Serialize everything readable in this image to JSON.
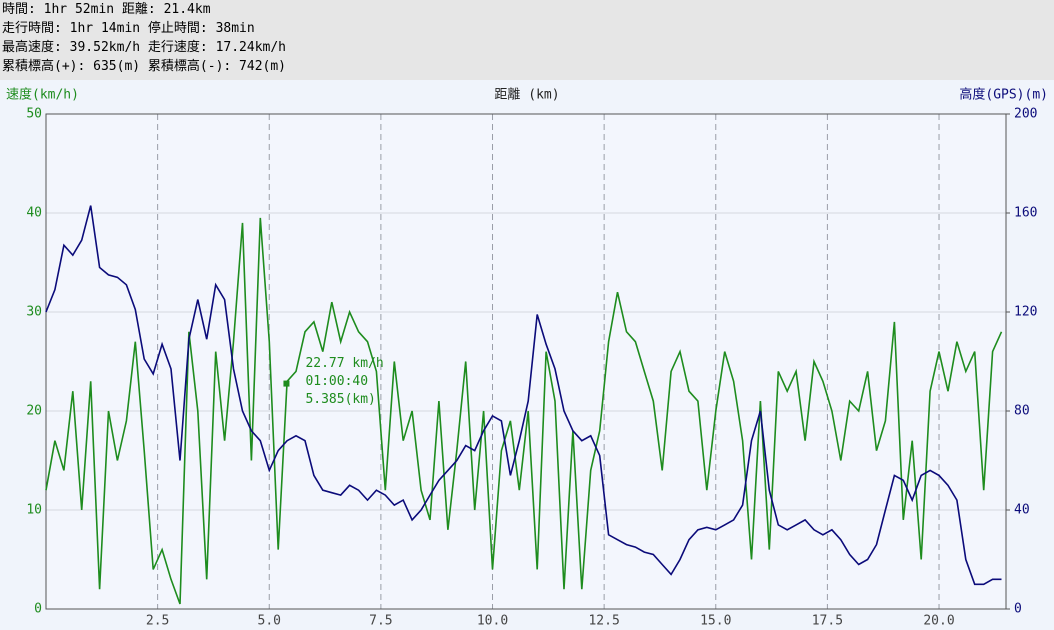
{
  "header": {
    "lines": [
      "時間: 1hr 52min 距離: 21.4km",
      "走行時間: 1hr 14min 停止時間: 38min",
      "最高速度: 39.52km/h 走行速度: 17.24km/h",
      "累積標高(+): 635(m) 累積標高(-): 742(m)"
    ]
  },
  "chart_data": {
    "type": "line",
    "y_label": "速度(km/h)",
    "x_label": "距離 (km)",
    "y2_label": "高度(GPS)(m)",
    "x": [
      0,
      0.2,
      0.4,
      0.6,
      0.8,
      1.0,
      1.2,
      1.4,
      1.6,
      1.8,
      2.0,
      2.2,
      2.4,
      2.6,
      2.8,
      3.0,
      3.2,
      3.4,
      3.6,
      3.8,
      4.0,
      4.2,
      4.4,
      4.6,
      4.8,
      5.0,
      5.2,
      5.4,
      5.6,
      5.8,
      6.0,
      6.2,
      6.4,
      6.6,
      6.8,
      7.0,
      7.2,
      7.4,
      7.6,
      7.8,
      8.0,
      8.2,
      8.4,
      8.6,
      8.8,
      9.0,
      9.2,
      9.4,
      9.6,
      9.8,
      10.0,
      10.2,
      10.4,
      10.6,
      10.8,
      11.0,
      11.2,
      11.4,
      11.6,
      11.8,
      12.0,
      12.2,
      12.4,
      12.6,
      12.8,
      13.0,
      13.2,
      13.4,
      13.6,
      13.8,
      14.0,
      14.2,
      14.4,
      14.6,
      14.8,
      15.0,
      15.2,
      15.4,
      15.6,
      15.8,
      16.0,
      16.2,
      16.4,
      16.6,
      16.8,
      17.0,
      17.2,
      17.4,
      17.6,
      17.8,
      18.0,
      18.2,
      18.4,
      18.6,
      18.8,
      19.0,
      19.2,
      19.4,
      19.6,
      19.8,
      20.0,
      20.2,
      20.4,
      20.6,
      20.8,
      21.0,
      21.2,
      21.4
    ],
    "series": [
      {
        "color": "#1e8c1e",
        "values": [
          12,
          17,
          14,
          22,
          10,
          23,
          2,
          20,
          15,
          19,
          27,
          16,
          4,
          6,
          3,
          0.5,
          28,
          20,
          3,
          26,
          17,
          27,
          39,
          15,
          39.5,
          27,
          6,
          23,
          24,
          28,
          29,
          26,
          31,
          27,
          30,
          28,
          27,
          24,
          12,
          25,
          17,
          20,
          12,
          9,
          21,
          8,
          16,
          25,
          10,
          20,
          4,
          16,
          19,
          12,
          20,
          4,
          26,
          21,
          2,
          18,
          2,
          14,
          18,
          27,
          32,
          28,
          27,
          24,
          21,
          14,
          24,
          26,
          22,
          21,
          12,
          20,
          26,
          23,
          17,
          5,
          21,
          6,
          24,
          22,
          24,
          17,
          25,
          23,
          20,
          15,
          21,
          20,
          24,
          16,
          19,
          29,
          9,
          17,
          5,
          22,
          26,
          22,
          27,
          24,
          26,
          12,
          26,
          28
        ]
      },
      {
        "color": "#0b0b7a",
        "axis": "y2",
        "values": [
          120,
          129,
          147,
          143,
          149,
          163,
          138,
          135,
          134,
          131,
          121,
          101,
          95,
          107,
          97,
          60,
          109,
          125,
          109,
          131,
          125,
          97,
          80,
          72,
          68,
          56,
          64,
          68,
          70,
          68,
          54,
          48,
          47,
          46,
          50,
          48,
          44,
          48,
          46,
          42,
          44,
          36,
          40,
          46,
          52,
          56,
          60,
          66,
          64,
          72,
          78,
          76,
          54,
          68,
          84,
          119,
          107,
          97,
          80,
          72,
          68,
          70,
          62,
          30,
          28,
          26,
          25,
          23,
          22,
          18,
          14,
          20,
          28,
          32,
          33,
          32,
          34,
          36,
          42,
          68,
          80,
          48,
          34,
          32,
          34,
          36,
          32,
          30,
          32,
          28,
          22,
          18,
          20,
          26,
          40,
          54,
          52,
          44,
          54,
          56,
          54,
          50,
          44,
          20,
          10,
          10,
          12,
          12
        ]
      }
    ],
    "xlim": [
      0,
      21.5
    ],
    "xticks": [
      2.5,
      {
        "value": 5,
        "label": "5.0"
      },
      7.5,
      {
        "value": 10,
        "label": "10.0"
      },
      12.5,
      {
        "value": 15,
        "label": "15.0"
      },
      17.5,
      {
        "value": 20,
        "label": "20.0"
      }
    ],
    "ylim": [
      0,
      50
    ],
    "yticks": [
      0,
      10,
      20,
      30,
      40,
      50
    ],
    "y2lim": [
      0,
      200
    ],
    "y2ticks": [
      0,
      40,
      80,
      120,
      160,
      200
    ],
    "grid": true,
    "annotation": {
      "x": 5.385,
      "y": 22.77,
      "text": [
        "22.77 km/h",
        "01:00:40",
        "5.385(km)"
      ]
    }
  }
}
